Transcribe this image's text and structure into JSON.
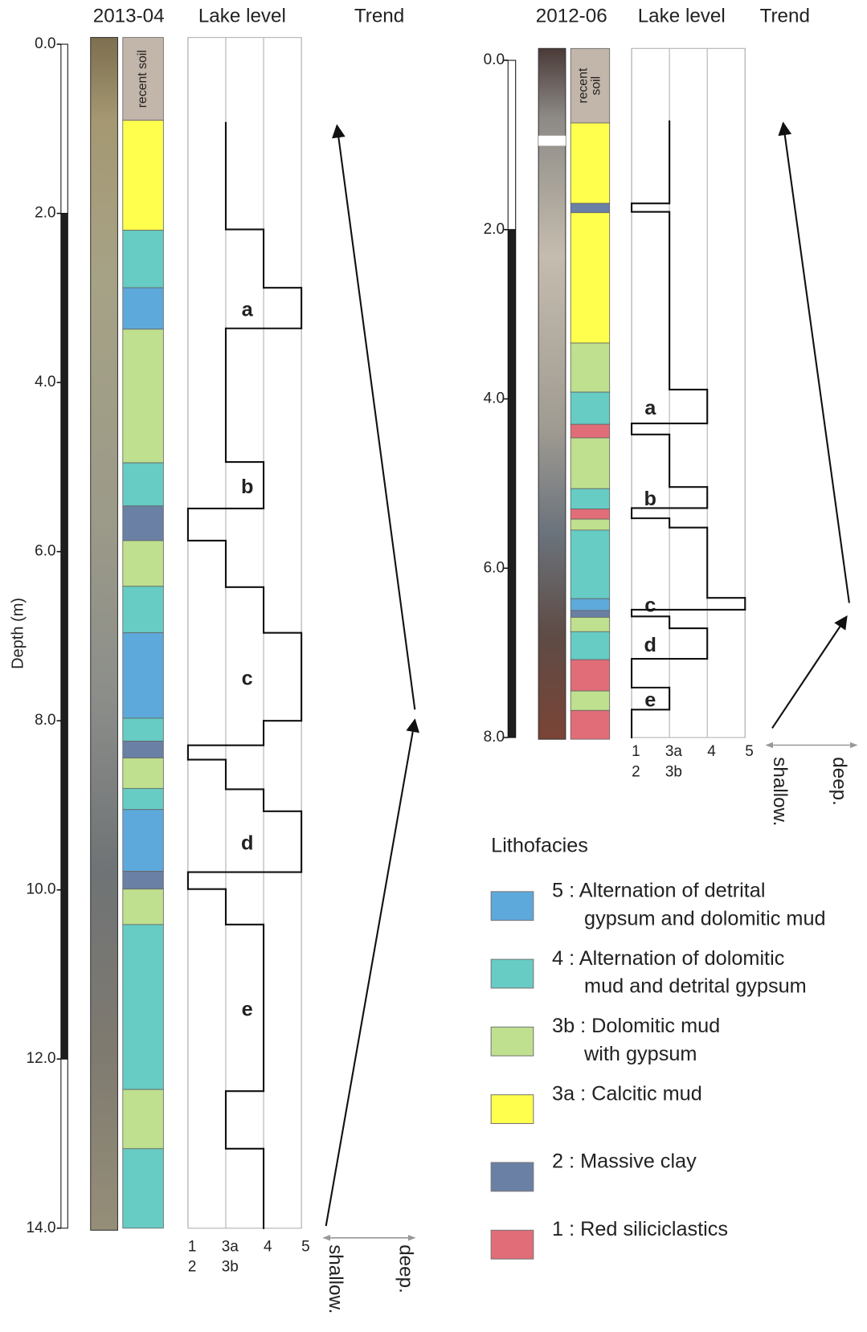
{
  "depth_label": "Depth (m)",
  "cores": [
    {
      "title": "2013-04",
      "lake_level_title": "Lake level",
      "trend_title": "Trend",
      "ylim": [
        0,
        14
      ],
      "yticks": [
        {
          "value": 0,
          "label": "0.0"
        },
        {
          "value": 2,
          "label": "2.0"
        },
        {
          "value": 4,
          "label": "4.0"
        },
        {
          "value": 6,
          "label": "6.0"
        },
        {
          "value": 8,
          "label": "8.0"
        },
        {
          "value": 10,
          "label": "10.0"
        },
        {
          "value": 12,
          "label": "12.0"
        },
        {
          "value": 14,
          "label": "14.0"
        }
      ],
      "sections": [
        {
          "top": 0,
          "bottom": 2,
          "color": "#ffffff"
        },
        {
          "top": 2,
          "bottom": 12,
          "color": "#1e1e1e"
        },
        {
          "top": 12,
          "bottom": 14,
          "color": "#ffffff"
        }
      ],
      "lithology": [
        {
          "top": 0,
          "bottom": 0.9,
          "color": "#c2b5aa",
          "label": [
            "recent soil"
          ]
        },
        {
          "top": 0.9,
          "bottom": 2.2,
          "color": "#ffff4d"
        },
        {
          "top": 2.2,
          "bottom": 2.88,
          "color": "#66ccc4"
        },
        {
          "top": 2.88,
          "bottom": 3.37,
          "color": "#5ea9dc"
        },
        {
          "top": 3.37,
          "bottom": 4.95,
          "color": "#bfe08e"
        },
        {
          "top": 4.95,
          "bottom": 5.46,
          "color": "#66ccc4"
        },
        {
          "top": 5.46,
          "bottom": 5.87,
          "color": "#6a80a4"
        },
        {
          "top": 5.87,
          "bottom": 6.41,
          "color": "#bfe08e"
        },
        {
          "top": 6.41,
          "bottom": 6.96,
          "color": "#66ccc4"
        },
        {
          "top": 6.96,
          "bottom": 7.97,
          "color": "#5ea9dc"
        },
        {
          "top": 7.97,
          "bottom": 8.24,
          "color": "#66ccc4"
        },
        {
          "top": 8.24,
          "bottom": 8.44,
          "color": "#6a80a4"
        },
        {
          "top": 8.44,
          "bottom": 8.8,
          "color": "#bfe08e"
        },
        {
          "top": 8.8,
          "bottom": 9.05,
          "color": "#66ccc4"
        },
        {
          "top": 9.05,
          "bottom": 9.78,
          "color": "#5ea9dc"
        },
        {
          "top": 9.78,
          "bottom": 9.99,
          "color": "#6a80a4"
        },
        {
          "top": 9.99,
          "bottom": 10.41,
          "color": "#bfe08e"
        },
        {
          "top": 10.41,
          "bottom": 12.36,
          "color": "#66ccc4"
        },
        {
          "top": 12.36,
          "bottom": 13.06,
          "color": "#bfe08e"
        },
        {
          "top": 13.06,
          "bottom": 14,
          "color": "#66ccc4"
        }
      ],
      "level_ticks": [
        {
          "value": 0,
          "labels": [
            "1",
            "2"
          ]
        },
        {
          "value": 1,
          "labels": [
            "3a",
            "3b"
          ]
        },
        {
          "value": 2,
          "labels": [
            "4"
          ]
        },
        {
          "value": 3,
          "labels": [
            "5"
          ]
        }
      ],
      "lake_level": [
        {
          "level": 1,
          "top": 0.93,
          "bottom": 2.19
        },
        {
          "level": 2,
          "top": 2.19,
          "bottom": 2.88
        },
        {
          "level": 3,
          "top": 2.88,
          "bottom": 3.36,
          "label": "a"
        },
        {
          "level": 1,
          "top": 3.36,
          "bottom": 4.94
        },
        {
          "level": 2,
          "top": 4.94,
          "bottom": 5.49,
          "label": "b"
        },
        {
          "level": 0,
          "top": 5.49,
          "bottom": 5.87
        },
        {
          "level": 1,
          "top": 5.87,
          "bottom": 6.42
        },
        {
          "level": 2,
          "top": 6.42,
          "bottom": 6.96
        },
        {
          "level": 3,
          "top": 6.96,
          "bottom": 8.0,
          "label": "c"
        },
        {
          "level": 2,
          "top": 8.0,
          "bottom": 8.29
        },
        {
          "level": 0,
          "top": 8.29,
          "bottom": 8.46
        },
        {
          "level": 1,
          "top": 8.46,
          "bottom": 8.81
        },
        {
          "level": 2,
          "top": 8.81,
          "bottom": 9.07
        },
        {
          "level": 3,
          "top": 9.07,
          "bottom": 9.79,
          "label": "d"
        },
        {
          "level": 0,
          "top": 9.79,
          "bottom": 9.99
        },
        {
          "level": 1,
          "top": 9.99,
          "bottom": 10.41
        },
        {
          "level": 2,
          "top": 10.41,
          "bottom": 12.38,
          "label": "e"
        },
        {
          "level": 1,
          "top": 12.38,
          "bottom": 13.06
        },
        {
          "level": 2,
          "top": 13.06,
          "bottom": 14
        }
      ],
      "shallow": "shallow.",
      "deep": "deep."
    },
    {
      "title": "2012-06",
      "lake_level_title": "Lake level",
      "trend_title": "Trend",
      "ylim": [
        0,
        8
      ],
      "yticks": [
        {
          "value": 0,
          "label": "0.0"
        },
        {
          "value": 2,
          "label": "2.0"
        },
        {
          "value": 4,
          "label": "4.0"
        },
        {
          "value": 6,
          "label": "6.0"
        },
        {
          "value": 8,
          "label": "8.0"
        }
      ],
      "sections": [
        {
          "top": 0,
          "bottom": 2,
          "color": "#ffffff"
        },
        {
          "top": 2,
          "bottom": 8,
          "color": "#1e1e1e"
        }
      ],
      "lithology": [
        {
          "top": 0,
          "bottom": 0.74,
          "color": "#c2b5aa",
          "label": [
            "recent",
            "soil"
          ]
        },
        {
          "top": 0.74,
          "bottom": 1.69,
          "color": "#ffff4d"
        },
        {
          "top": 1.69,
          "bottom": 1.8,
          "color": "#6a80a4"
        },
        {
          "top": 1.8,
          "bottom": 3.34,
          "color": "#ffff4d"
        },
        {
          "top": 3.34,
          "bottom": 3.92,
          "color": "#bfe08e"
        },
        {
          "top": 3.92,
          "bottom": 4.3,
          "color": "#66ccc4"
        },
        {
          "top": 4.3,
          "bottom": 4.46,
          "color": "#e06d78"
        },
        {
          "top": 4.46,
          "bottom": 5.06,
          "color": "#bfe08e"
        },
        {
          "top": 5.06,
          "bottom": 5.3,
          "color": "#66ccc4"
        },
        {
          "top": 5.3,
          "bottom": 5.42,
          "color": "#e06d78"
        },
        {
          "top": 5.42,
          "bottom": 5.55,
          "color": "#bfe08e"
        },
        {
          "top": 5.55,
          "bottom": 6.36,
          "color": "#66ccc4"
        },
        {
          "top": 6.36,
          "bottom": 6.5,
          "color": "#5ea9dc"
        },
        {
          "top": 6.5,
          "bottom": 6.58,
          "color": "#6a80a4"
        },
        {
          "top": 6.58,
          "bottom": 6.75,
          "color": "#bfe08e"
        },
        {
          "top": 6.75,
          "bottom": 7.08,
          "color": "#66ccc4"
        },
        {
          "top": 7.08,
          "bottom": 7.45,
          "color": "#e06d78"
        },
        {
          "top": 7.45,
          "bottom": 7.68,
          "color": "#bfe08e"
        },
        {
          "top": 7.68,
          "bottom": 8.02,
          "color": "#e06d78"
        }
      ],
      "level_ticks": [
        {
          "value": 0,
          "labels": [
            "1",
            "2"
          ]
        },
        {
          "value": 1,
          "labels": [
            "3a",
            "3b"
          ]
        },
        {
          "value": 2,
          "labels": [
            "4"
          ]
        },
        {
          "value": 3,
          "labels": [
            "5"
          ]
        }
      ],
      "lake_level": [
        {
          "level": 1,
          "top": 0.72,
          "bottom": 1.69
        },
        {
          "level": 0,
          "top": 1.69,
          "bottom": 1.79
        },
        {
          "level": 1,
          "top": 1.79,
          "bottom": 3.89
        },
        {
          "level": 2,
          "top": 3.89,
          "bottom": 4.29,
          "label": "a"
        },
        {
          "level": 0,
          "top": 4.29,
          "bottom": 4.42
        },
        {
          "level": 1,
          "top": 4.42,
          "bottom": 5.04
        },
        {
          "level": 2,
          "top": 5.04,
          "bottom": 5.29,
          "label": "b"
        },
        {
          "level": 0,
          "top": 5.29,
          "bottom": 5.41
        },
        {
          "level": 1,
          "top": 5.41,
          "bottom": 5.52
        },
        {
          "level": 2,
          "top": 5.52,
          "bottom": 6.35
        },
        {
          "level": 3,
          "top": 6.35,
          "bottom": 6.49,
          "label": "c"
        },
        {
          "level": 0,
          "top": 6.49,
          "bottom": 6.57
        },
        {
          "level": 1,
          "top": 6.57,
          "bottom": 6.71
        },
        {
          "level": 2,
          "top": 6.71,
          "bottom": 7.07,
          "label": "d"
        },
        {
          "level": 0,
          "top": 7.07,
          "bottom": 7.41
        },
        {
          "level": 1,
          "top": 7.41,
          "bottom": 7.67,
          "label": "e"
        },
        {
          "level": 0,
          "top": 7.67,
          "bottom": 8.0
        }
      ],
      "shallow": "shallow.",
      "deep": "deep."
    }
  ],
  "legend": {
    "title": "Lithofacies",
    "items": [
      {
        "color": "#5ea9dc",
        "lines": [
          "5 : Alternation of detrital",
          "gypsum and dolomitic mud"
        ]
      },
      {
        "color": "#66ccc4",
        "lines": [
          "4 : Alternation of dolomitic",
          "mud and detrital gypsum"
        ]
      },
      {
        "color": "#bfe08e",
        "lines": [
          "3b : Dolomitic mud",
          "with gypsum"
        ]
      },
      {
        "color": "#ffff4d",
        "lines": [
          "3a : Calcitic mud"
        ]
      },
      {
        "color": "#6a80a4",
        "lines": [
          "2 : Massive clay"
        ]
      },
      {
        "color": "#e06d78",
        "lines": [
          "1 : Red siliciclastics"
        ]
      }
    ]
  }
}
